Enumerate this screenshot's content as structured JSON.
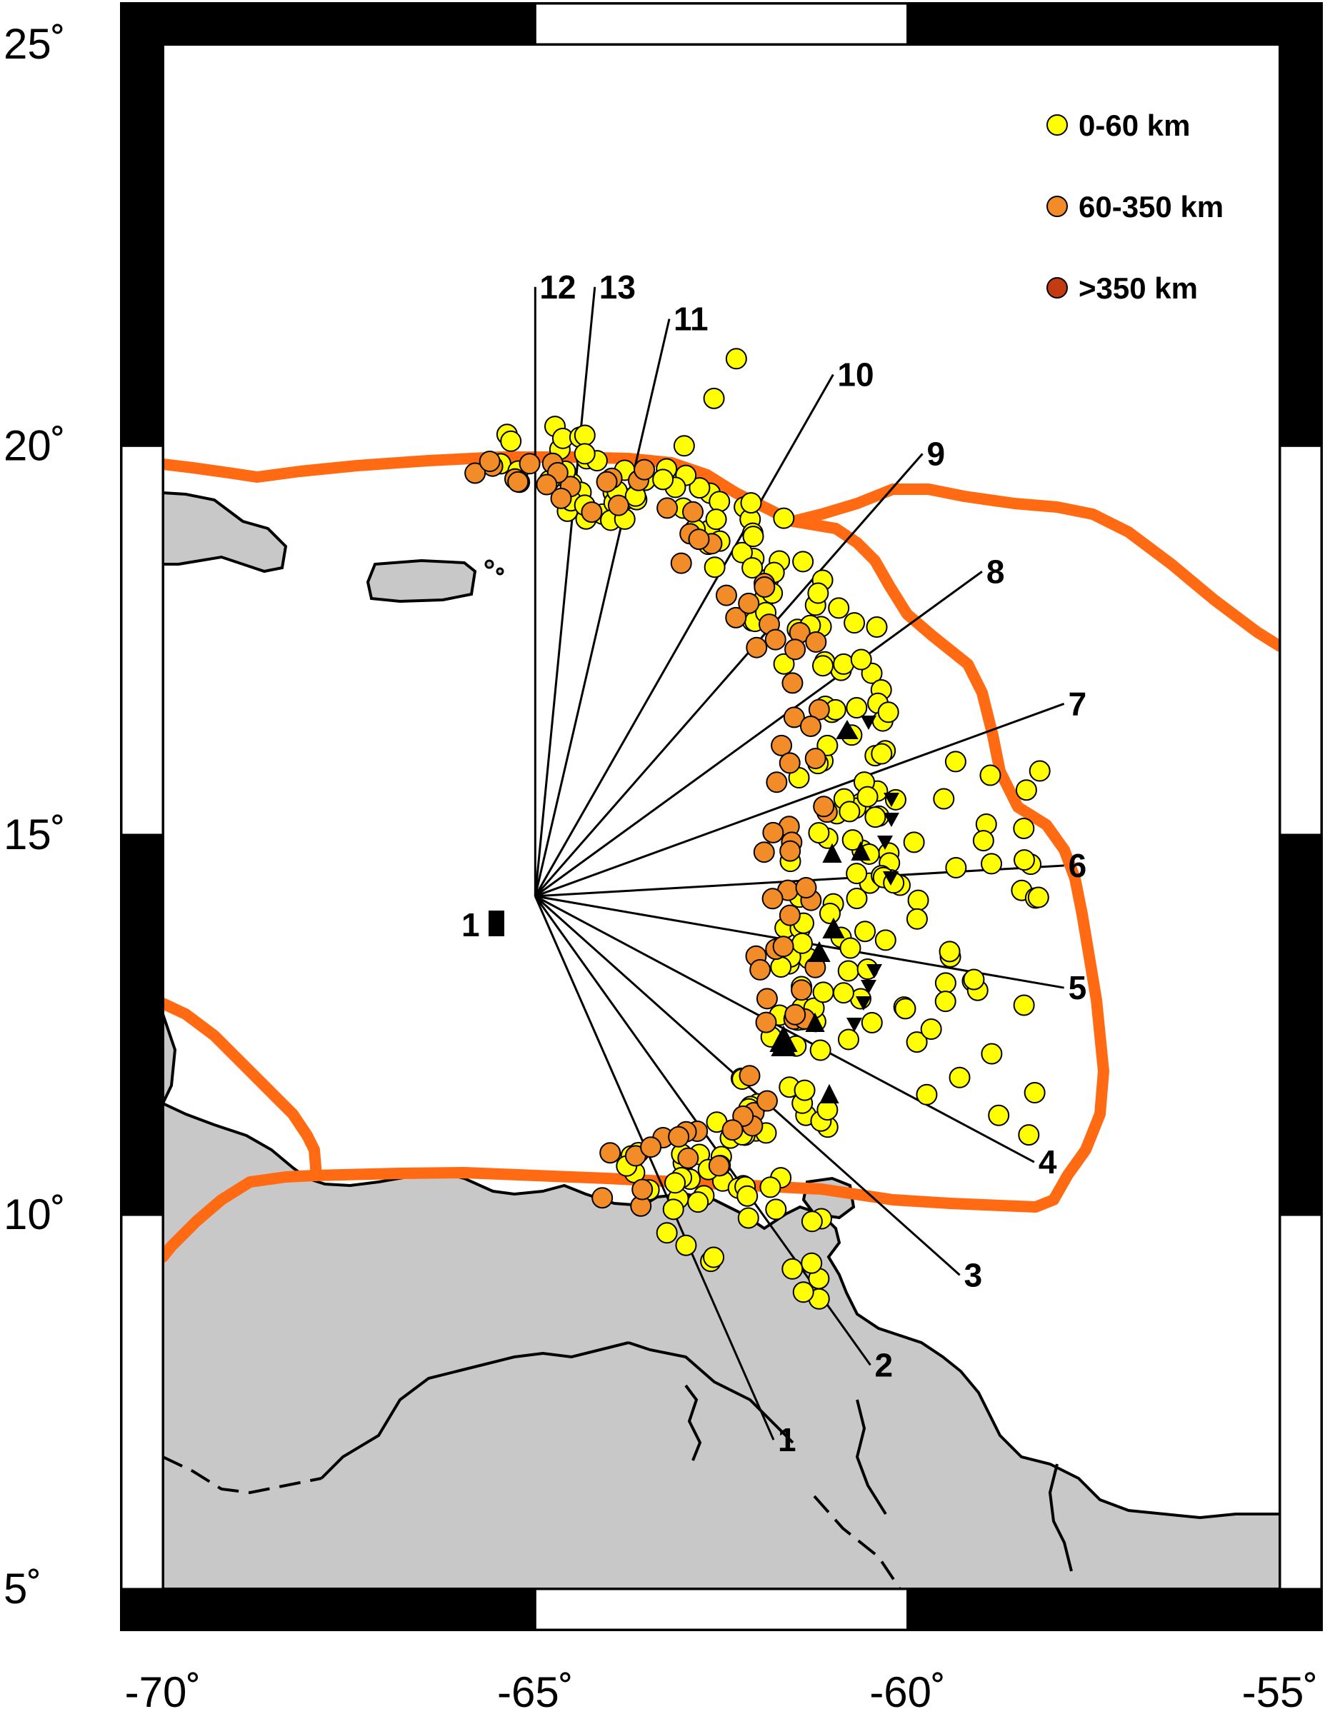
{
  "map": {
    "projection": "Mercator",
    "extent": {
      "lon": [
        -70,
        -55
      ],
      "lat": [
        5,
        25
      ]
    },
    "land_color": "#c8c8c8",
    "water_color": "#ffffff",
    "plate_boundary_color": "#ff6a13",
    "axes": {
      "x_ticks": [
        {
          "lon": -70,
          "label": "-70˚"
        },
        {
          "lon": -65,
          "label": "-65˚"
        },
        {
          "lon": -60,
          "label": "-60˚"
        },
        {
          "lon": -55,
          "label": "-55˚"
        }
      ],
      "y_ticks": [
        {
          "lat": 25,
          "label": "25˚"
        },
        {
          "lat": 20,
          "label": "20˚"
        },
        {
          "lat": 15,
          "label": "15˚"
        },
        {
          "lat": 10,
          "label": "10˚"
        },
        {
          "lat": 5,
          "label": "5˚"
        }
      ]
    },
    "legend": {
      "position": "top-right",
      "items": [
        {
          "label": "0-60 km",
          "color": "#ffff00"
        },
        {
          "label": "60-350 km",
          "color": "#f28c28"
        },
        {
          "label": ">350 km",
          "color": "#c23b12"
        }
      ]
    },
    "station": {
      "label": "1",
      "lon": -65.2,
      "lat": 14.0
    },
    "profile_origin": {
      "lon": -65.0,
      "lat": 14.2
    },
    "profiles": [
      {
        "label": "1",
        "end": {
          "lon": -61.8,
          "lat": 7.0
        }
      },
      {
        "label": "2",
        "end": {
          "lon": -60.5,
          "lat": 8.0
        }
      },
      {
        "label": "3",
        "end": {
          "lon": -59.3,
          "lat": 9.2
        }
      },
      {
        "label": "4",
        "end": {
          "lon": -58.3,
          "lat": 10.7
        }
      },
      {
        "label": "5",
        "end": {
          "lon": -57.9,
          "lat": 13.0
        }
      },
      {
        "label": "6",
        "end": {
          "lon": -57.9,
          "lat": 14.6
        }
      },
      {
        "label": "7",
        "end": {
          "lon": -57.9,
          "lat": 16.7
        }
      },
      {
        "label": "8",
        "end": {
          "lon": -59.0,
          "lat": 18.4
        }
      },
      {
        "label": "9",
        "end": {
          "lon": -59.8,
          "lat": 19.9
        }
      },
      {
        "label": "10",
        "end": {
          "lon": -61.0,
          "lat": 20.9
        }
      },
      {
        "label": "11",
        "end": {
          "lon": -63.2,
          "lat": 21.6
        }
      },
      {
        "label": "12",
        "end": {
          "lon": -65.0,
          "lat": 22.0
        }
      },
      {
        "label": "13",
        "end": {
          "lon": -64.2,
          "lat": 22.0
        }
      }
    ]
  }
}
